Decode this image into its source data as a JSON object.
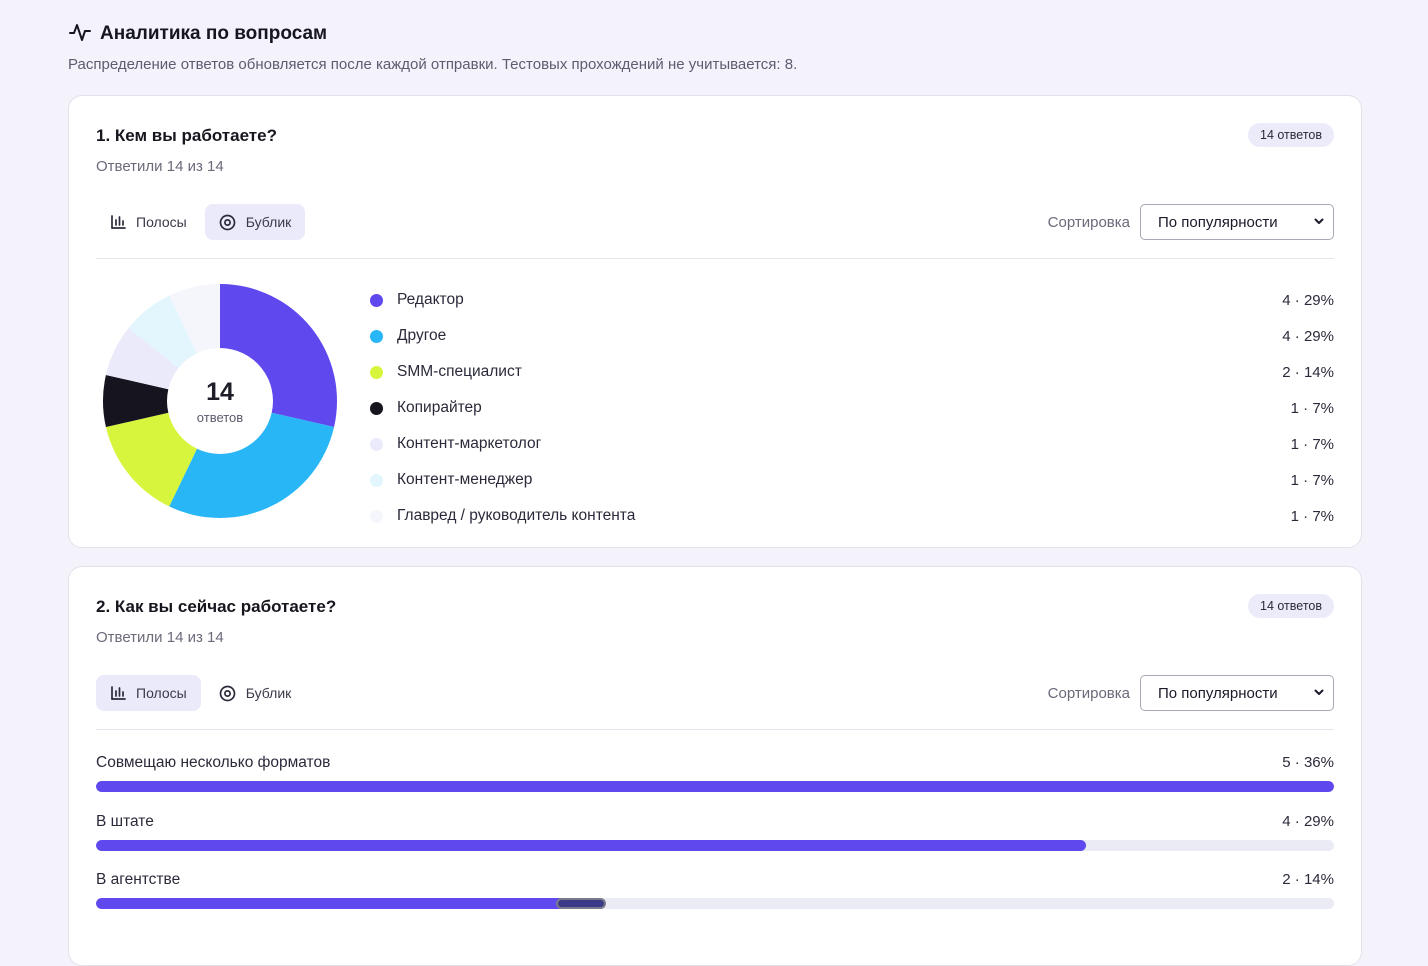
{
  "header": {
    "title": "Аналитика по вопросам",
    "subtitle": "Распределение ответов обновляется после каждой отправки. Тестовых прохождений не учитывается: 8.",
    "icon": "activity-pulse-icon"
  },
  "questions": [
    {
      "title": "1. Кем вы работаете?",
      "answered": "Ответили 14 из 14",
      "badge": "14 ответов",
      "view_modes": [
        {
          "label": "Полосы",
          "icon": "bar-chart-icon",
          "active": false
        },
        {
          "label": "Бублик",
          "icon": "donut-icon",
          "active": true
        }
      ],
      "sort_label": "Сортировка",
      "sort_value": "По популярности",
      "center_number": "14",
      "center_unit": "ответов",
      "chart_data": {
        "type": "pie",
        "total": 14,
        "slices": [
          {
            "label": "Редактор",
            "count": 4,
            "percent": 29,
            "display": "4 · 29%",
            "color": "#5e48ee"
          },
          {
            "label": "Другое",
            "count": 4,
            "percent": 29,
            "display": "4 · 29%",
            "color": "#29b6f6"
          },
          {
            "label": "SMM-специалист",
            "count": 2,
            "percent": 14,
            "display": "2 · 14%",
            "color": "#d8f53e"
          },
          {
            "label": "Копирайтер",
            "count": 1,
            "percent": 7,
            "display": "1 · 7%",
            "color": "#15141f"
          },
          {
            "label": "Контент-маркетолог",
            "count": 1,
            "percent": 7,
            "display": "1 · 7%",
            "color": "#ebeafb"
          },
          {
            "label": "Контент-менеджер",
            "count": 1,
            "percent": 7,
            "display": "1 · 7%",
            "color": "#e3f5fd"
          },
          {
            "label": "Главред / руководитель контента",
            "count": 1,
            "percent": 7,
            "display": "1 · 7%",
            "color": "#f5f6fb"
          }
        ]
      }
    },
    {
      "title": "2. Как вы сейчас работаете?",
      "answered": "Ответили 14 из 14",
      "badge": "14 ответов",
      "view_modes": [
        {
          "label": "Полосы",
          "icon": "bar-chart-icon",
          "active": true
        },
        {
          "label": "Бублик",
          "icon": "donut-icon",
          "active": false
        }
      ],
      "sort_label": "Сортировка",
      "sort_value": "По популярности",
      "chart_data": {
        "type": "bar",
        "total": 14,
        "categories": [
          "Совмещаю несколько форматов",
          "В штате",
          "В агентстве"
        ],
        "values": [
          5,
          4,
          2
        ],
        "percents": [
          36,
          29,
          14
        ],
        "display": [
          "5 · 36%",
          "4 · 29%",
          "2 · 14%"
        ],
        "max": 5,
        "color": "#5e48ee"
      }
    }
  ]
}
